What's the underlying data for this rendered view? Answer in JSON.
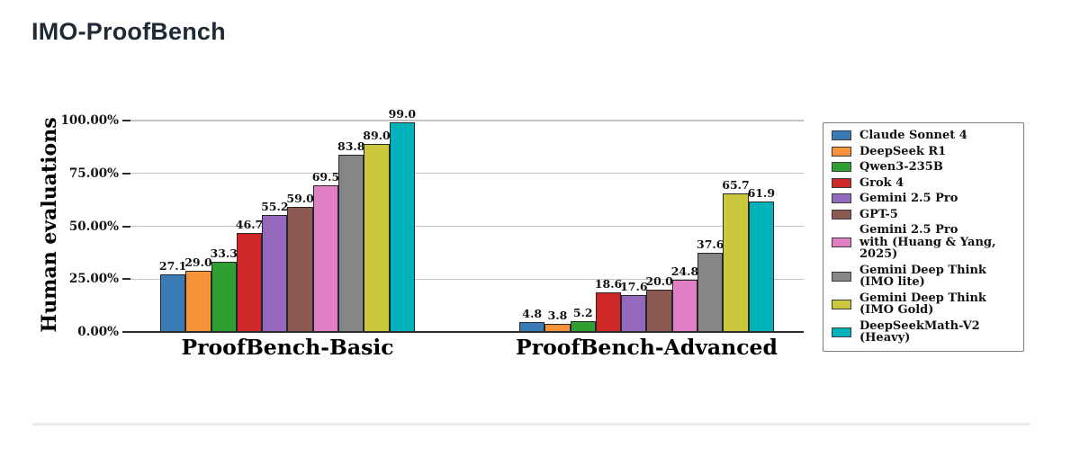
{
  "page": {
    "title": "IMO-ProofBench"
  },
  "chart_data": {
    "type": "bar",
    "title": "IMO-ProofBench",
    "ylabel": "Human evaluations",
    "categories": [
      "ProofBench-Basic",
      "ProofBench-Advanced"
    ],
    "ylim": [
      0,
      100
    ],
    "ytick_values": [
      0,
      25,
      50,
      75,
      100
    ],
    "ytick_labels": [
      "0.00%",
      "25.00%",
      "50.00%",
      "75.00%",
      "100.00%"
    ],
    "grid": "horizontal",
    "legend_position": "right",
    "value_label_decimals": 1,
    "series": [
      {
        "name": "Claude Sonnet 4",
        "color": "#3a7ab7",
        "values": [
          27.1,
          4.8
        ]
      },
      {
        "name": "DeepSeek R1",
        "color": "#f7943a",
        "values": [
          29.0,
          3.8
        ]
      },
      {
        "name": "Qwen3-235B",
        "color": "#2f9e33",
        "values": [
          33.3,
          5.2
        ]
      },
      {
        "name": "Grok 4",
        "color": "#cf2628",
        "values": [
          46.7,
          18.6
        ]
      },
      {
        "name": "Gemini 2.5 Pro",
        "color": "#9468bd",
        "values": [
          55.2,
          17.6
        ]
      },
      {
        "name": "GPT-5",
        "color": "#8c5a50",
        "values": [
          59.0,
          20.0
        ]
      },
      {
        "name": "Gemini 2.5 Pro\nwith (Huang & Yang, 2025)",
        "color": "#e07fc6",
        "values": [
          69.5,
          24.8
        ]
      },
      {
        "name": "Gemini Deep Think\n(IMO lite)",
        "color": "#868686",
        "values": [
          83.8,
          37.6
        ]
      },
      {
        "name": "Gemini Deep Think\n(IMO Gold)",
        "color": "#ccc83e",
        "values": [
          89.0,
          65.7
        ]
      },
      {
        "name": "DeepSeekMath-V2 (Heavy)",
        "color": "#00b2ba",
        "values": [
          99.0,
          61.9
        ]
      }
    ]
  }
}
